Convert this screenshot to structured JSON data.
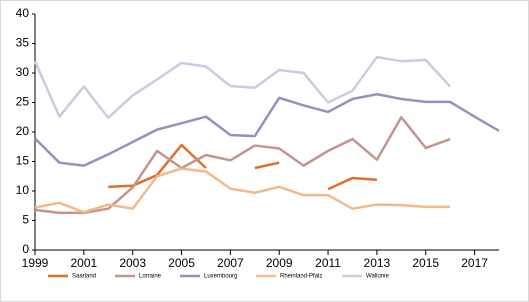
{
  "chart_data": {
    "type": "line",
    "x": [
      1999,
      2000,
      2001,
      2002,
      2003,
      2004,
      2005,
      2006,
      2007,
      2008,
      2009,
      2010,
      2011,
      2012,
      2013,
      2014,
      2015,
      2016,
      2017,
      2018
    ],
    "series": [
      {
        "name": "Saarland",
        "color": "#e46c2a",
        "values": [
          null,
          null,
          null,
          10.7,
          10.9,
          12.7,
          17.8,
          13.9,
          null,
          13.9,
          14.8,
          null,
          10.3,
          12.2,
          11.9,
          null,
          null,
          null,
          null,
          null
        ]
      },
      {
        "name": "Lorraine",
        "color": "#c4948e",
        "values": [
          6.8,
          6.3,
          6.3,
          7.0,
          10.6,
          16.8,
          13.9,
          16.1,
          15.2,
          17.7,
          17.2,
          14.3,
          16.8,
          18.8,
          15.3,
          22.5,
          17.3,
          18.8,
          null,
          null
        ]
      },
      {
        "name": "Luxembourg",
        "color": "#9b8dbf",
        "values": [
          18.9,
          14.8,
          14.3,
          16.2,
          18.3,
          20.4,
          21.5,
          22.6,
          19.5,
          19.3,
          25.8,
          24.5,
          23.4,
          25.6,
          26.4,
          25.6,
          25.1,
          25.1,
          22.6,
          20.2
        ]
      },
      {
        "name": "Rheinland-Pfalz",
        "color": "#f4b98a",
        "values": [
          7.2,
          8.0,
          6.4,
          7.7,
          7.0,
          12.5,
          13.8,
          13.3,
          10.4,
          9.7,
          10.7,
          9.3,
          9.3,
          7.0,
          7.7,
          7.6,
          7.3,
          7.3,
          null,
          null
        ]
      },
      {
        "name": "Wallonie",
        "color": "#d0c8e2",
        "values": [
          32.0,
          22.6,
          27.7,
          22.4,
          26.2,
          28.9,
          31.7,
          31.1,
          27.8,
          27.5,
          30.5,
          30.0,
          25.0,
          27.0,
          32.7,
          32.0,
          32.2,
          27.7,
          null,
          null
        ]
      }
    ],
    "xlim": [
      1999,
      2018
    ],
    "xticks": [
      1999,
      2001,
      2003,
      2005,
      2007,
      2009,
      2011,
      2013,
      2015,
      2017
    ],
    "ylim": [
      0,
      40
    ],
    "yticks": [
      0,
      5,
      10,
      15,
      20,
      25,
      30,
      35,
      40
    ]
  }
}
